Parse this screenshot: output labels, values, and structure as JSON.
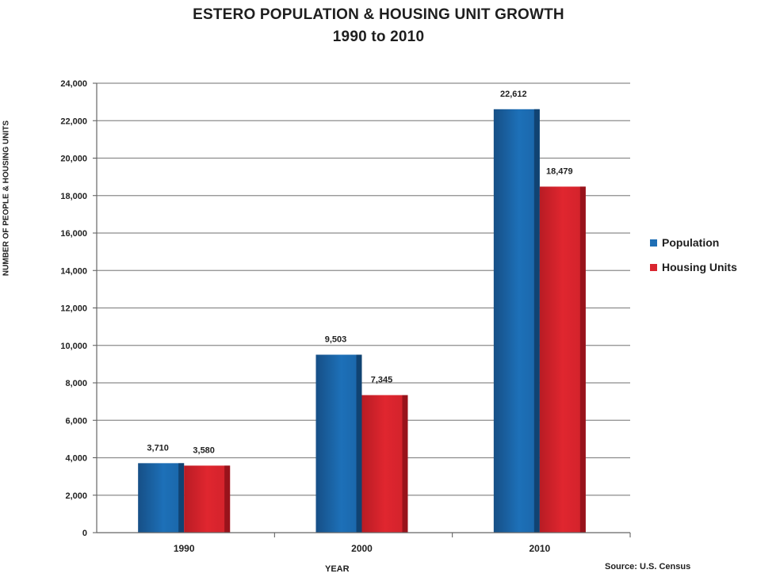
{
  "chart_data": {
    "type": "bar",
    "title": "ESTERO POPULATION & HOUSING UNIT GROWTH",
    "subtitle": "1990 to 2010",
    "xlabel": "YEAR",
    "ylabel": "NUMBER OF PEOPLE & HOUSING UNITS",
    "categories": [
      "1990",
      "2000",
      "2010"
    ],
    "series": [
      {
        "name": "Population",
        "values": [
          3710,
          9503,
          22612
        ],
        "labels": [
          "3,710",
          "9,503",
          "22,612"
        ],
        "color": "#1f6fb5"
      },
      {
        "name": "Housing Units",
        "values": [
          3580,
          7345,
          18479
        ],
        "labels": [
          "3,580",
          "7,345",
          "18,479"
        ],
        "color": "#d9252f"
      }
    ],
    "ylim": [
      0,
      24000
    ],
    "yticks": [
      "0",
      "2,000",
      "4,000",
      "6,000",
      "8,000",
      "10,000",
      "12,000",
      "14,000",
      "16,000",
      "18,000",
      "20,000",
      "22,000",
      "24,000"
    ],
    "grid": true,
    "legend_position": "right",
    "source": "Source: U.S. Census"
  }
}
